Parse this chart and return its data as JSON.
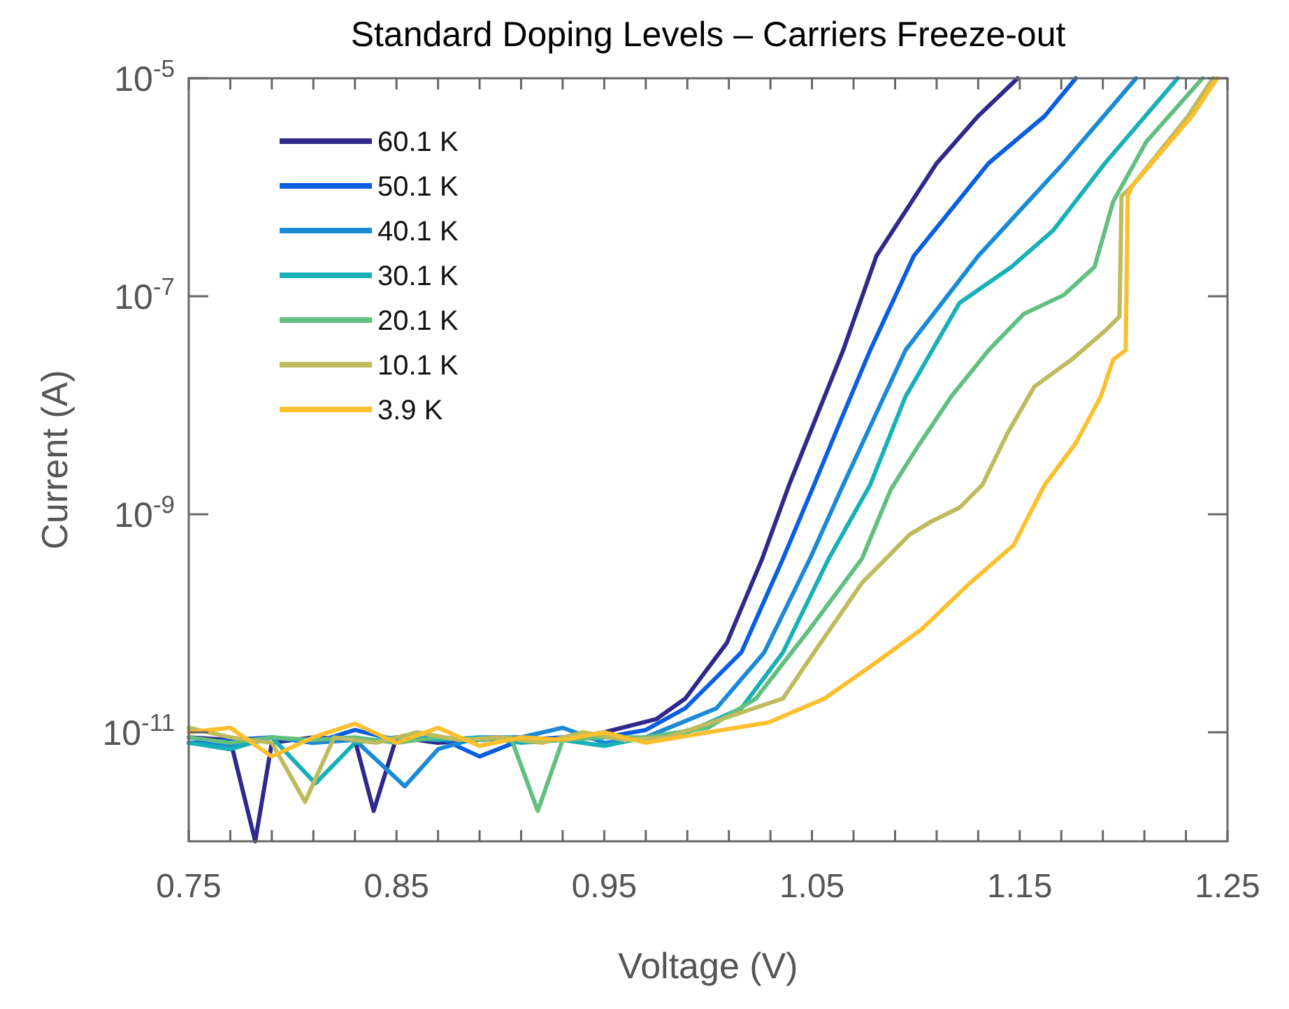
{
  "chart_data": {
    "type": "line",
    "title": "Standard Doping Levels – Carriers Freeze-out",
    "xlabel": "Voltage (V)",
    "ylabel": "Current (A)",
    "log": "y",
    "grid": false,
    "legend": "top left",
    "line_style": "solid",
    "xlim": [
      0.75,
      1.25
    ],
    "ylim": [
      1e-12,
      1e-05
    ],
    "xticks": [
      0.75,
      {
        "value": 0.77,
        "label": null
      },
      {
        "value": 0.79,
        "label": null
      },
      {
        "value": 0.81,
        "label": null
      },
      {
        "value": 0.83,
        "label": null
      },
      0.85,
      {
        "value": 0.87,
        "label": null
      },
      {
        "value": 0.89,
        "label": null
      },
      {
        "value": 0.91,
        "label": null
      },
      {
        "value": 0.93,
        "label": null
      },
      0.95,
      {
        "value": 0.97,
        "label": null
      },
      {
        "value": 0.99,
        "label": null
      },
      {
        "value": 1.01,
        "label": null
      },
      {
        "value": 1.03,
        "label": null
      },
      1.05,
      {
        "value": 1.07,
        "label": null
      },
      {
        "value": 1.09,
        "label": null
      },
      {
        "value": 1.11,
        "label": null
      },
      {
        "value": 1.13,
        "label": null
      },
      1.15,
      {
        "value": 1.17,
        "label": null
      },
      {
        "value": 1.19,
        "label": null
      },
      {
        "value": 1.21,
        "label": null
      },
      {
        "value": 1.23,
        "label": null
      },
      1.25
    ],
    "yticks": [
      {
        "value": 1e-11,
        "label": "10$^{-11}$"
      },
      {
        "value": 1e-09,
        "label": "10$^{-9}$"
      },
      {
        "value": 1e-07,
        "label": "10$^{-7}$"
      },
      {
        "value": 1e-05,
        "label": "10$^{-5}$"
      }
    ],
    "series": [
      {
        "name": "60.1 K",
        "color": "#30288a",
        "x": [
          0.75,
          0.77,
          0.782,
          0.79,
          0.81,
          0.83,
          0.839,
          0.85,
          0.87,
          0.89,
          0.91,
          0.93,
          0.95,
          0.975,
          0.989,
          1.009,
          1.026,
          1.039,
          1.065,
          1.081,
          1.11,
          1.13,
          1.149
        ],
        "values": [
          9e-12,
          8.5e-12,
          1e-12,
          8e-12,
          9e-12,
          8.5e-12,
          1.9e-12,
          9e-12,
          8e-12,
          8.5e-12,
          9e-12,
          8.5e-12,
          1e-11,
          1.32e-11,
          2.04e-11,
          6.6e-11,
          3.9e-10,
          1.86e-09,
          3.2e-08,
          2.34e-07,
          1.66e-06,
          4.5e-06,
          1e-05
        ]
      },
      {
        "name": "50.1 K",
        "color": "#0a5ee0",
        "x": [
          0.75,
          0.77,
          0.79,
          0.81,
          0.83,
          0.85,
          0.87,
          0.89,
          0.91,
          0.93,
          0.95,
          0.97,
          0.989,
          1.016,
          1.036,
          1.051,
          1.064,
          1.078,
          1.099,
          1.135,
          1.162,
          1.177
        ],
        "values": [
          8e-12,
          8.5e-12,
          9e-12,
          8e-12,
          1.05e-11,
          8.5e-12,
          9e-12,
          6e-12,
          8.5e-12,
          9e-12,
          9e-12,
          1.05e-11,
          1.66e-11,
          5.4e-11,
          3.9e-10,
          1.86e-09,
          7.4e-09,
          3.2e-08,
          2.34e-07,
          1.66e-06,
          4.5e-06,
          1e-05
        ]
      },
      {
        "name": "40.1 K",
        "color": "#1a8ad6",
        "x": [
          0.75,
          0.77,
          0.79,
          0.81,
          0.83,
          0.854,
          0.87,
          0.89,
          0.91,
          0.93,
          0.95,
          0.97,
          1.004,
          1.027,
          1.049,
          1.065,
          1.095,
          1.13,
          1.171,
          1.206
        ],
        "values": [
          8e-12,
          7.5e-12,
          9e-12,
          8e-12,
          8.5e-12,
          3.2e-12,
          7e-12,
          9e-12,
          9e-12,
          1.1e-11,
          8e-12,
          9e-12,
          1.66e-11,
          5.4e-11,
          3.9e-10,
          1.86e-09,
          3.2e-08,
          2.34e-07,
          1.66e-06,
          1e-05
        ]
      },
      {
        "name": "30.1 K",
        "color": "#17b0b7",
        "x": [
          0.75,
          0.77,
          0.79,
          0.811,
          0.83,
          0.85,
          0.87,
          0.89,
          0.91,
          0.93,
          0.95,
          0.97,
          0.99,
          1.016,
          1.036,
          1.058,
          1.078,
          1.095,
          1.121,
          1.146,
          1.166,
          1.191,
          1.226
        ],
        "values": [
          8e-12,
          7e-12,
          9e-12,
          3.4e-12,
          8e-12,
          9e-12,
          8.5e-12,
          9e-12,
          8e-12,
          8.5e-12,
          7.5e-12,
          9e-12,
          1e-11,
          1.66e-11,
          5.4e-11,
          3.9e-10,
          1.86e-09,
          1.2e-08,
          8.7e-08,
          1.86e-07,
          4e-07,
          1.66e-06,
          1e-05
        ]
      },
      {
        "name": "20.1 K",
        "color": "#62bf7f",
        "x": [
          0.75,
          0.77,
          0.79,
          0.81,
          0.83,
          0.85,
          0.87,
          0.89,
          0.905,
          0.918,
          0.93,
          0.95,
          0.97,
          1.0,
          1.023,
          1.049,
          1.074,
          1.088,
          1.101,
          1.117,
          1.135,
          1.152,
          1.171,
          1.186,
          1.195,
          1.211,
          1.238
        ],
        "values": [
          9e-12,
          8e-12,
          9e-12,
          8.5e-12,
          9e-12,
          8e-12,
          9e-12,
          8.5e-12,
          9e-12,
          1.9e-12,
          8.5e-12,
          9e-12,
          9e-12,
          1.1e-11,
          2.04e-11,
          8.9e-11,
          3.9e-10,
          1.7e-09,
          4.2e-09,
          1.2e-08,
          3.2e-08,
          6.9e-08,
          1.02e-07,
          1.86e-07,
          7.4e-07,
          2.63e-06,
          1e-05
        ]
      },
      {
        "name": "10.1 K",
        "color": "#bdbb5c",
        "x": [
          0.75,
          0.77,
          0.79,
          0.806,
          0.82,
          0.84,
          0.86,
          0.88,
          0.9,
          0.92,
          0.94,
          0.96,
          0.98,
          1.0,
          1.036,
          1.051,
          1.074,
          1.097,
          1.108,
          1.121,
          1.132,
          1.144,
          1.157,
          1.175,
          1.191,
          1.198,
          1.199,
          1.204,
          1.231,
          1.243
        ],
        "values": [
          1.1e-11,
          9e-12,
          8e-12,
          2.3e-12,
          9e-12,
          8e-12,
          1e-11,
          8.5e-12,
          9e-12,
          8e-12,
          1e-11,
          8.5e-12,
          9e-12,
          1.2e-11,
          2.04e-11,
          5.4e-11,
          2.34e-10,
          6.5e-10,
          8.7e-10,
          1.15e-09,
          1.86e-09,
          5.5e-09,
          1.48e-08,
          2.63e-08,
          4.8e-08,
          6.5e-08,
          8.3e-07,
          1.02e-06,
          4.5e-06,
          1e-05
        ]
      },
      {
        "name": "3.9 K",
        "color": "#fcbf2d",
        "x": [
          0.75,
          0.77,
          0.79,
          0.81,
          0.83,
          0.85,
          0.87,
          0.89,
          0.91,
          0.93,
          0.95,
          0.97,
          1.0,
          1.029,
          1.056,
          1.078,
          1.103,
          1.126,
          1.147,
          1.162,
          1.177,
          1.189,
          1.195,
          1.201,
          1.202,
          1.204,
          1.233,
          1.245
        ],
        "values": [
          1e-11,
          1.1e-11,
          6e-12,
          9e-12,
          1.2e-11,
          8e-12,
          1.1e-11,
          7.5e-12,
          9e-12,
          8.5e-12,
          1e-11,
          8e-12,
          1e-11,
          1.23e-11,
          2.04e-11,
          4e-11,
          8.9e-11,
          2.34e-10,
          5.2e-10,
          1.86e-09,
          4.5e-09,
          1.2e-08,
          2.63e-08,
          3.2e-08,
          8.3e-07,
          1.02e-06,
          4.5e-06,
          1e-05
        ]
      }
    ]
  }
}
